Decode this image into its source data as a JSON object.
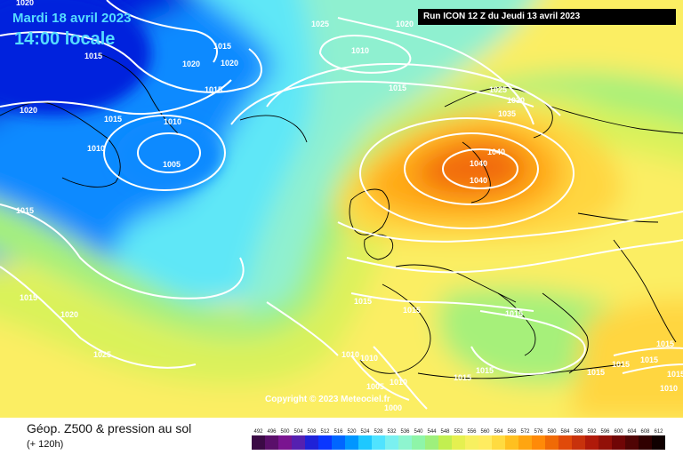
{
  "header": {
    "date_line": "Mardi 18 avril 2023",
    "time_line": "14:00 locale",
    "run_info": "Run ICON 12 Z du Jeudi 13 avril 2023"
  },
  "copyright": "Copyright © 2023 Meteociel.fr",
  "footer": {
    "title": "Géop. Z500 & pression au sol",
    "subtitle": "(+ 120h)"
  },
  "legend": {
    "values": [
      "492",
      "496",
      "500",
      "504",
      "508",
      "512",
      "516",
      "520",
      "524",
      "528",
      "532",
      "536",
      "540",
      "544",
      "548",
      "552",
      "556",
      "560",
      "564",
      "568",
      "572",
      "576",
      "580",
      "584",
      "588",
      "592",
      "596",
      "600",
      "604",
      "608",
      "612"
    ],
    "colors": [
      "#3b0a45",
      "#5a0f6a",
      "#7a1490",
      "#5520b0",
      "#1f22d8",
      "#0a36ff",
      "#0066ff",
      "#0096ff",
      "#1ec8ff",
      "#50e3ff",
      "#7af0f0",
      "#8ef5cf",
      "#8ef5a8",
      "#9ef07c",
      "#c2ef50",
      "#e5f050",
      "#f7f060",
      "#ffec60",
      "#ffdb40",
      "#ffc020",
      "#ffa510",
      "#ff8a08",
      "#f06a06",
      "#e04a0a",
      "#c8320c",
      "#b01a0a",
      "#921008",
      "#700606",
      "#500404",
      "#300000",
      "#100000"
    ]
  },
  "map": {
    "colors": {
      "ocean_deep": "#0022dd",
      "blue": "#0a8aff",
      "cyan": "#5ee7f7",
      "aqua": "#8ff0d0",
      "green": "#a6f07a",
      "lime": "#d9f25a",
      "yellow": "#fbee64",
      "gold": "#ffd640",
      "orange": "#ffaa18",
      "deep_orange": "#f26c0c"
    },
    "isobar_labels": [
      "1020",
      "1025",
      "1020",
      "1015",
      "1010",
      "1020",
      "1020",
      "1015",
      "1015",
      "1020",
      "1015",
      "1010",
      "1015",
      "1010",
      "1005",
      "1015",
      "1025",
      "1030",
      "1035",
      "1040",
      "1040",
      "1040",
      "1015",
      "1015",
      "1015",
      "1020",
      "1025",
      "1015",
      "1010",
      "1010",
      "1015",
      "1015",
      "1015",
      "1005",
      "1010",
      "1000",
      "1015",
      "1015",
      "1015",
      "1015",
      "1010"
    ]
  }
}
